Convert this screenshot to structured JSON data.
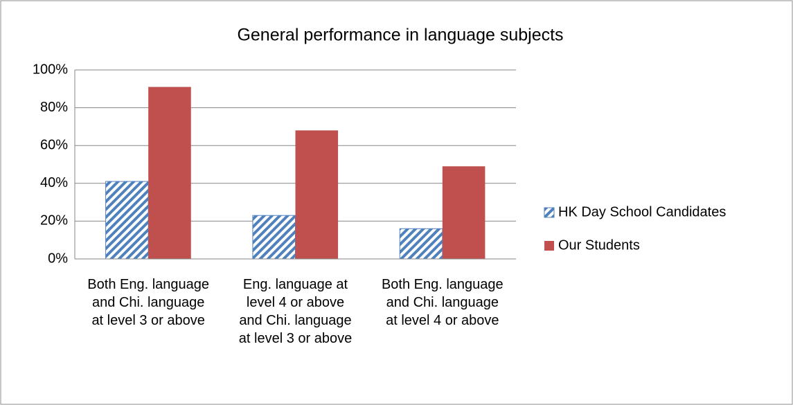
{
  "chart_data": {
    "type": "bar",
    "title": "General performance in language subjects",
    "categories": [
      "Both Eng. language and Chi. language at level 3 or above",
      "Eng. language at level 4 or above and Chi. language at level 3 or above",
      "Both Eng. language and Chi. language at level 4 or above"
    ],
    "series": [
      {
        "name": "HK Day School Candidates",
        "color": "#4f81bd",
        "hatch": true,
        "values": [
          41,
          23,
          16
        ]
      },
      {
        "name": "Our Students",
        "color": "#c0504d",
        "hatch": false,
        "values": [
          91,
          68,
          49
        ]
      }
    ],
    "ylim": [
      0,
      100
    ],
    "yticks": [
      {
        "value": 0,
        "label": "0%"
      },
      {
        "value": 20,
        "label": "20%"
      },
      {
        "value": 40,
        "label": "40%"
      },
      {
        "value": 60,
        "label": "60%"
      },
      {
        "value": 80,
        "label": "80%"
      },
      {
        "value": 100,
        "label": "100%"
      }
    ],
    "grid": true,
    "legend": "right"
  }
}
